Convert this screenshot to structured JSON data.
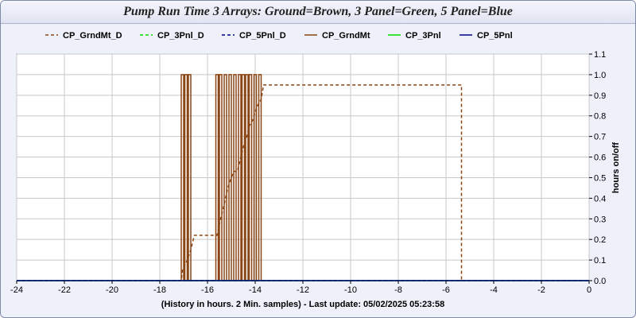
{
  "chart_data": {
    "type": "line",
    "title": "Pump Run Time 3 Arrays: Ground=Brown, 3 Panel=Green, 5 Panel=Blue",
    "xlabel": "(History in hours. 2 Min. samples) - Last update: 05/02/2025 05:23:58",
    "ylabel": "hours on/off",
    "xlim": [
      -24,
      0
    ],
    "ylim": [
      0,
      1.1
    ],
    "x_ticks": [
      "-24",
      "-22",
      "-20",
      "-18",
      "-16",
      "-14",
      "-12",
      "-10",
      "-8",
      "-6",
      "-4",
      "-2",
      "0"
    ],
    "y_ticks": [
      "0.0",
      "0.1",
      "0.2",
      "0.3",
      "0.4",
      "0.5",
      "0.6",
      "0.7",
      "0.8",
      "0.9",
      "1.0",
      "1.1"
    ],
    "y_axis_side": "right",
    "grid": true,
    "legend_position": "top",
    "series": [
      {
        "name": "CP_GrndMt_D",
        "color": "#8b4513",
        "style": "dashed",
        "x": [
          -24,
          -17.1,
          -17.05,
          -16.85,
          -16.7,
          -16.55,
          -16.0,
          -15.6,
          -15.45,
          -15.3,
          -15.15,
          -15.0,
          -14.9,
          -14.75,
          -14.6,
          -14.45,
          -14.35,
          -14.25,
          -14.1,
          -14.0,
          -13.9,
          -13.75,
          -13.65,
          -5.35,
          -5.35,
          0
        ],
        "values": [
          0,
          0,
          0.05,
          0.1,
          0.15,
          0.22,
          0.22,
          0.22,
          0.3,
          0.37,
          0.45,
          0.5,
          0.53,
          0.53,
          0.6,
          0.67,
          0.7,
          0.75,
          0.78,
          0.82,
          0.85,
          0.88,
          0.95,
          0.95,
          0,
          0
        ]
      },
      {
        "name": "CP_3Pnl_D",
        "color": "#00dd00",
        "style": "dashed",
        "x": [
          -24,
          0
        ],
        "values": [
          0,
          0
        ]
      },
      {
        "name": "CP_5Pnl_D",
        "color": "#00008b",
        "style": "dashed",
        "x": [
          -24,
          0
        ],
        "values": [
          0,
          0
        ]
      },
      {
        "name": "CP_GrndMt",
        "color": "#8b4513",
        "style": "solid",
        "on_intervals": [
          [
            -17.1,
            -17.0
          ],
          [
            -16.95,
            -16.85
          ],
          [
            -16.8,
            -16.7
          ],
          [
            -15.65,
            -15.55
          ],
          [
            -15.5,
            -15.4
          ],
          [
            -15.3,
            -15.2
          ],
          [
            -15.1,
            -15.0
          ],
          [
            -14.9,
            -14.8
          ],
          [
            -14.7,
            -14.6
          ],
          [
            -14.55,
            -14.45
          ],
          [
            -14.4,
            -14.3
          ],
          [
            -14.25,
            -14.15
          ],
          [
            -14.05,
            -13.95
          ],
          [
            -13.85,
            -13.75
          ]
        ]
      },
      {
        "name": "CP_3Pnl",
        "color": "#00dd00",
        "style": "solid",
        "x": [
          -24,
          0
        ],
        "values": [
          0,
          0
        ]
      },
      {
        "name": "CP_5Pnl",
        "color": "#00008b",
        "style": "solid",
        "x": [
          -24,
          0
        ],
        "values": [
          0,
          0
        ]
      }
    ]
  }
}
